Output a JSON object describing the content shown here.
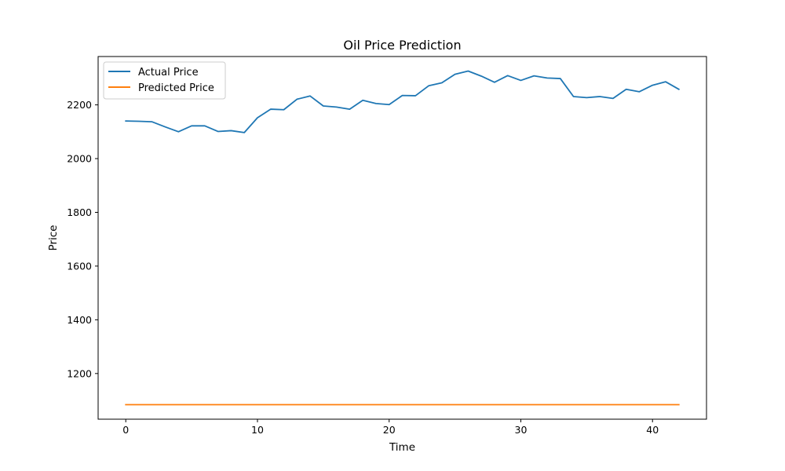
{
  "chart_data": {
    "type": "line",
    "title": "Oil Price Prediction",
    "xlabel": "Time",
    "ylabel": "Price",
    "xlim": [
      -2.1,
      44.1
    ],
    "ylim": [
      1030,
      2380
    ],
    "xticks": [
      0,
      10,
      20,
      30,
      40
    ],
    "yticks": [
      1200,
      1400,
      1600,
      1800,
      2000,
      2200
    ],
    "grid": false,
    "legend_position": "top-left",
    "x": [
      0,
      1,
      2,
      3,
      4,
      5,
      6,
      7,
      8,
      9,
      10,
      11,
      12,
      13,
      14,
      15,
      16,
      17,
      18,
      19,
      20,
      21,
      22,
      23,
      24,
      25,
      26,
      27,
      28,
      29,
      30,
      31,
      32,
      33,
      34,
      35,
      36,
      37,
      38,
      39,
      40,
      41,
      42
    ],
    "series": [
      {
        "name": "Actual Price",
        "color": "#1f77b4",
        "values": [
          2140,
          2139,
          2137,
          2118,
          2100,
          2122,
          2122,
          2101,
          2104,
          2097,
          2152,
          2184,
          2182,
          2221,
          2233,
          2196,
          2192,
          2184,
          2217,
          2205,
          2201,
          2235,
          2234,
          2271,
          2282,
          2314,
          2326,
          2307,
          2284,
          2309,
          2291,
          2308,
          2300,
          2298,
          2231,
          2227,
          2231,
          2224,
          2258,
          2249,
          2273,
          2286,
          2258
        ]
      },
      {
        "name": "Predicted Price",
        "color": "#ff7f0e",
        "values": [
          1084,
          1084,
          1084,
          1084,
          1084,
          1084,
          1084,
          1084,
          1084,
          1084,
          1084,
          1084,
          1084,
          1084,
          1084,
          1084,
          1084,
          1084,
          1084,
          1084,
          1084,
          1084,
          1084,
          1084,
          1084,
          1084,
          1084,
          1084,
          1084,
          1084,
          1084,
          1084,
          1084,
          1084,
          1084,
          1084,
          1084,
          1084,
          1084,
          1084,
          1084,
          1084,
          1084
        ]
      }
    ]
  }
}
